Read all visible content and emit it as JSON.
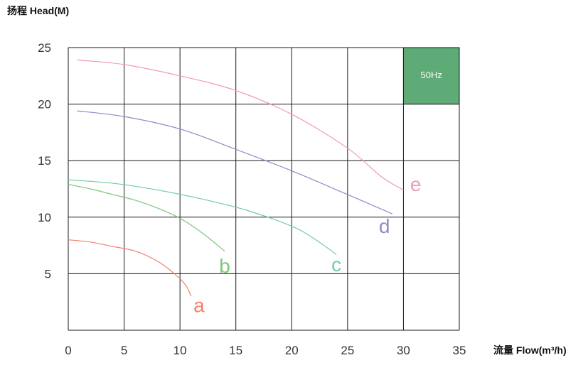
{
  "chart_data": {
    "type": "line",
    "ylabel": "扬程 Head(M)",
    "xlabel": "流量 Flow(m³/h)",
    "xlim": [
      0,
      35
    ],
    "ylim": [
      0,
      25
    ],
    "xticks": [
      "0",
      "5",
      "10",
      "15",
      "20",
      "25",
      "30",
      "35"
    ],
    "yticks": [
      "5",
      "10",
      "15",
      "20",
      "25"
    ],
    "grid": true,
    "annotation": {
      "text": "50Hz",
      "x0": 30,
      "x1": 35,
      "y0": 20,
      "y1": 25,
      "color": "#5eab78"
    },
    "series": [
      {
        "name": "a",
        "color": "#f2806e",
        "points": [
          [
            0,
            8.0
          ],
          [
            2,
            7.8
          ],
          [
            4,
            7.4
          ],
          [
            6,
            7.0
          ],
          [
            8,
            6.1
          ],
          [
            9.5,
            5.0
          ],
          [
            10.5,
            4.0
          ],
          [
            11,
            3.0
          ]
        ],
        "label_at": [
          11.7,
          1.6
        ]
      },
      {
        "name": "b",
        "color": "#7dc67a",
        "points": [
          [
            0,
            12.9
          ],
          [
            2,
            12.5
          ],
          [
            4,
            12.0
          ],
          [
            6,
            11.5
          ],
          [
            8,
            10.8
          ],
          [
            10,
            9.9
          ],
          [
            12,
            8.6
          ],
          [
            14,
            7.0
          ]
        ],
        "label_at": [
          14,
          5.1
        ]
      },
      {
        "name": "c",
        "color": "#6fcca4",
        "points": [
          [
            0,
            13.3
          ],
          [
            4,
            13.0
          ],
          [
            8,
            12.4
          ],
          [
            12,
            11.6
          ],
          [
            16,
            10.6
          ],
          [
            20,
            9.2
          ],
          [
            22,
            8.1
          ],
          [
            24,
            6.7
          ]
        ],
        "label_at": [
          24,
          5.2
        ]
      },
      {
        "name": "d",
        "color": "#8b8cc9",
        "points": [
          [
            0.8,
            19.4
          ],
          [
            5,
            18.9
          ],
          [
            10,
            17.8
          ],
          [
            15,
            16.0
          ],
          [
            20,
            14.1
          ],
          [
            25,
            12.0
          ],
          [
            29,
            10.3
          ]
        ],
        "label_at": [
          28.3,
          8.6
        ]
      },
      {
        "name": "e",
        "color": "#f19ab5",
        "points": [
          [
            0.8,
            23.9
          ],
          [
            5,
            23.5
          ],
          [
            10,
            22.5
          ],
          [
            15,
            21.2
          ],
          [
            20,
            19.1
          ],
          [
            25,
            16.1
          ],
          [
            28,
            13.6
          ],
          [
            30,
            12.4
          ]
        ],
        "label_at": [
          31.1,
          12.3
        ]
      }
    ]
  }
}
